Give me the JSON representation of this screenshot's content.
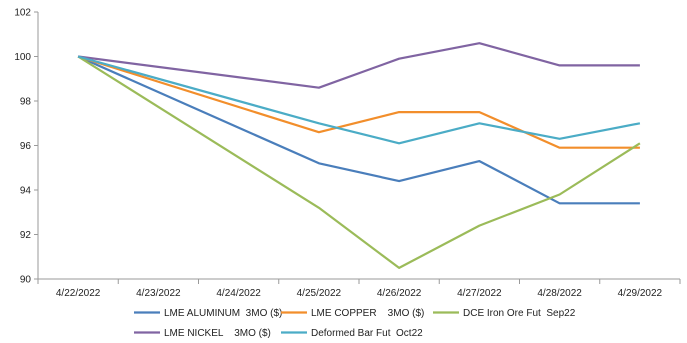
{
  "chart_data": {
    "type": "line",
    "title": "",
    "xlabel": "",
    "ylabel": "",
    "categories": [
      "4/22/2022",
      "4/23/2022",
      "4/24/2022",
      "4/25/2022",
      "4/26/2022",
      "4/27/2022",
      "4/28/2022",
      "4/29/2022"
    ],
    "ylim": [
      90,
      102
    ],
    "yticks": [
      90,
      92,
      94,
      96,
      98,
      100,
      102
    ],
    "ytick_labels": [
      "90",
      "92",
      "94",
      "96",
      "98",
      "100",
      "102"
    ],
    "grid": false,
    "legend_position": "bottom",
    "series": [
      {
        "name": "LME ALUMINUM  3MO ($)",
        "color": "#4a7ebb",
        "points": [
          [
            "4/22/2022",
            100
          ],
          [
            "4/25/2022",
            95.2
          ],
          [
            "4/26/2022",
            94.4
          ],
          [
            "4/27/2022",
            95.3
          ],
          [
            "4/28/2022",
            93.4
          ],
          [
            "4/29/2022",
            93.4
          ]
        ]
      },
      {
        "name": "LME COPPER    3MO ($)",
        "color": "#f28e2b",
        "points": [
          [
            "4/22/2022",
            100
          ],
          [
            "4/25/2022",
            96.6
          ],
          [
            "4/26/2022",
            97.5
          ],
          [
            "4/27/2022",
            97.5
          ],
          [
            "4/28/2022",
            95.9
          ],
          [
            "4/29/2022",
            95.9
          ]
        ]
      },
      {
        "name": "DCE Iron Ore Fut  Sep22",
        "color": "#9bbb59",
        "points": [
          [
            "4/22/2022",
            100
          ],
          [
            "4/25/2022",
            93.2
          ],
          [
            "4/26/2022",
            90.5
          ],
          [
            "4/27/2022",
            92.4
          ],
          [
            "4/28/2022",
            93.8
          ],
          [
            "4/29/2022",
            96.1
          ]
        ]
      },
      {
        "name": "LME NICKEL    3MO ($)",
        "color": "#8064a2",
        "points": [
          [
            "4/22/2022",
            100
          ],
          [
            "4/25/2022",
            98.6
          ],
          [
            "4/26/2022",
            99.9
          ],
          [
            "4/27/2022",
            100.6
          ],
          [
            "4/28/2022",
            99.6
          ],
          [
            "4/29/2022",
            99.6
          ]
        ]
      },
      {
        "name": "Deformed Bar Fut  Oct22",
        "color": "#4bacc6",
        "points": [
          [
            "4/22/2022",
            100
          ],
          [
            "4/25/2022",
            97.0
          ],
          [
            "4/26/2022",
            96.1
          ],
          [
            "4/27/2022",
            97.0
          ],
          [
            "4/28/2022",
            96.3
          ],
          [
            "4/29/2022",
            97.0
          ]
        ]
      }
    ]
  }
}
